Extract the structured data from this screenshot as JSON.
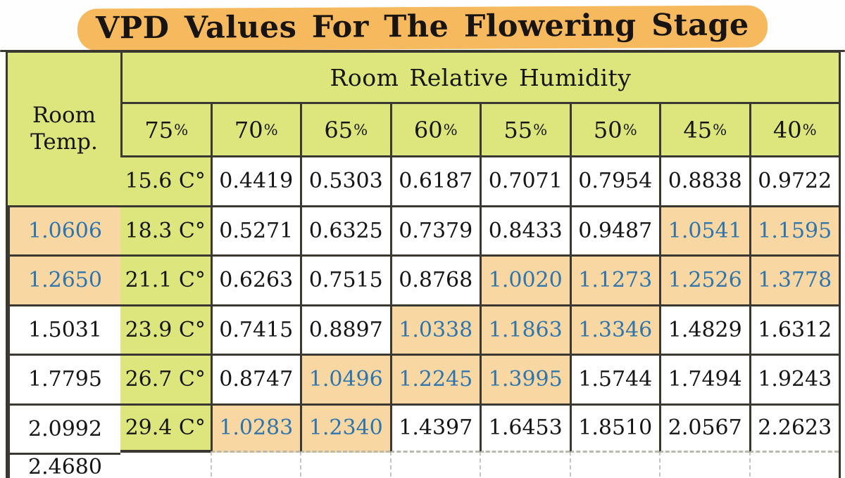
{
  "title": "VPD Values For The Flowering Stage",
  "chart_data": {
    "type": "table",
    "title": "VPD Values For The Flowering Stage",
    "corner_lines": [
      "Room",
      "Temp."
    ],
    "humidity_header": "Room Relative Humidity",
    "columns": [
      "75%",
      "70%",
      "65%",
      "60%",
      "55%",
      "50%",
      "45%",
      "40%"
    ],
    "rows": [
      {
        "temp": "15.6 C°",
        "values": [
          "0.4419",
          "0.5303",
          "0.6187",
          "0.7071",
          "0.7954",
          "0.8838",
          "0.9722",
          "1.0606"
        ],
        "highlighted": [
          7
        ]
      },
      {
        "temp": "18.3 C°",
        "values": [
          "0.5271",
          "0.6325",
          "0.7379",
          "0.8433",
          "0.9487",
          "1.0541",
          "1.1595",
          "1.2650"
        ],
        "highlighted": [
          5,
          6,
          7
        ]
      },
      {
        "temp": "21.1 C°",
        "values": [
          "0.6263",
          "0.7515",
          "0.8768",
          "1.0020",
          "1.1273",
          "1.2526",
          "1.3778",
          "1.5031"
        ],
        "highlighted": [
          3,
          4,
          5,
          6
        ]
      },
      {
        "temp": "23.9 C°",
        "values": [
          "0.7415",
          "0.8897",
          "1.0338",
          "1.1863",
          "1.3346",
          "1.4829",
          "1.6312",
          "1.7795"
        ],
        "highlighted": [
          2,
          3,
          4
        ]
      },
      {
        "temp": "26.7 C°",
        "values": [
          "0.8747",
          "1.0496",
          "1.2245",
          "1.3995",
          "1.5744",
          "1.7494",
          "1.9243",
          "2.0992"
        ],
        "highlighted": [
          1,
          2,
          3
        ]
      },
      {
        "temp": "29.4 C°",
        "values": [
          "1.0283",
          "1.2340",
          "1.4397",
          "1.6453",
          "1.8510",
          "2.0567",
          "2.2623",
          "2.4680"
        ],
        "highlighted": [
          0,
          1
        ]
      }
    ]
  },
  "colors": {
    "header_green": "#dde67c",
    "cell_highlight_orange": "#f8d7a3",
    "title_highlight_orange": "#f7b95e",
    "highlight_value_blue": "#2e74ad",
    "border_dark": "#3a3830",
    "text_black": "#151515"
  }
}
